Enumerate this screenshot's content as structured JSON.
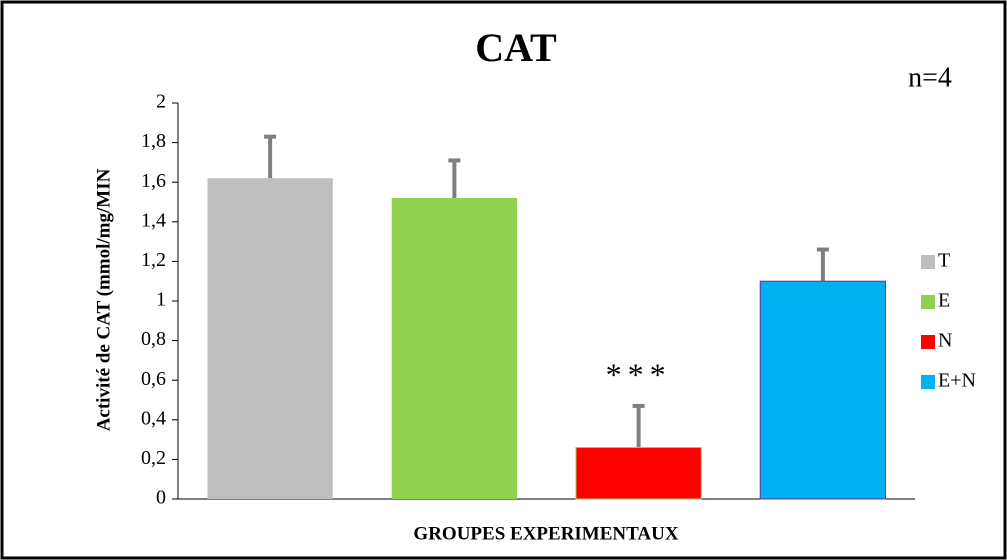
{
  "chart_data": {
    "type": "bar",
    "title": "CAT",
    "x_label": "GROUPES EXPERIMENTAUX",
    "y_label": "Activité de CAT  (mmol/mg/MIN",
    "categories": [
      "T",
      "E",
      "N",
      "E+N"
    ],
    "values": [
      1.62,
      1.52,
      0.26,
      1.1
    ],
    "errors": [
      0.21,
      0.19,
      0.21,
      0.16
    ],
    "colors": [
      "#bfbfbf",
      "#92d050",
      "#ff0000",
      "#00b0f0"
    ],
    "error_color": "#7f7f7f",
    "ylim": [
      0,
      2
    ],
    "yticks": [
      0,
      {
        "value": 0.2,
        "label": "0,2"
      },
      {
        "value": 0.4,
        "label": "0,4"
      },
      {
        "value": 0.6,
        "label": "0,6"
      },
      {
        "value": 0.8,
        "label": "0,8"
      },
      1,
      {
        "value": 1.2,
        "label": "1,2"
      },
      {
        "value": 1.4,
        "label": "1,4"
      },
      {
        "value": 1.6,
        "label": "1,6"
      },
      {
        "value": 1.8,
        "label": "1,8"
      },
      2
    ],
    "annotations": [
      "***",
      "n=4"
    ],
    "legend": "right"
  }
}
